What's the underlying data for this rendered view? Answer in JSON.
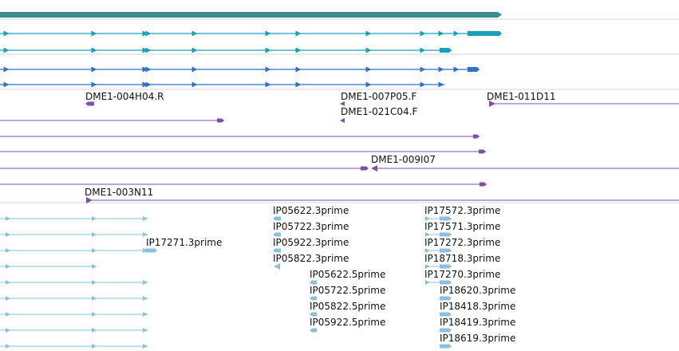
{
  "colors": {
    "gene": "#3c8c8c",
    "transcript_a": "#1aa0b8",
    "transcript_b": "#2f72c8",
    "est": "#7a52a8",
    "prime": "#8abfe0",
    "divider": "#d4d4d4"
  },
  "icons": {
    "arrow": "arrow-head-icon"
  },
  "est_labels": [
    "DME1-004H04.R",
    "DME1-007P05.F",
    "DME1-011D11",
    "DME1-021C04.F",
    "DME1-009I07",
    "DME1-003N11"
  ],
  "prime_labels": [
    "IP17271.3prime",
    "IP05622.3prime",
    "IP05722.3prime",
    "IP05922.3prime",
    "IP05822.3prime",
    "IP05622.5prime",
    "IP05722.5prime",
    "IP05822.5prime",
    "IP05922.5prime",
    "IP17572.3prime",
    "IP17571.3prime",
    "IP17272.3prime",
    "IP18718.3prime",
    "IP17270.3prime",
    "IP18620.3prime",
    "IP18418.3prime",
    "IP18419.3prime",
    "IP18619.3prime"
  ]
}
